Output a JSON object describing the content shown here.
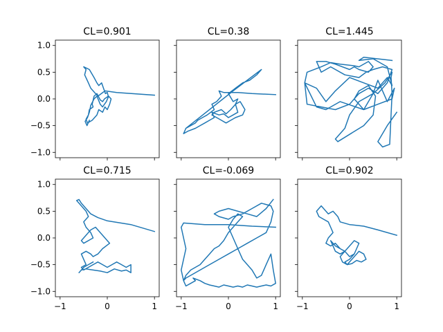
{
  "chart_data": [
    {
      "type": "line",
      "title": "CL=0.901",
      "xlim": [
        -1.1,
        1.1
      ],
      "ylim": [
        -1.1,
        1.1
      ],
      "xticks": [
        -1,
        0,
        1
      ],
      "yticks": [
        -1.0,
        -0.5,
        0.0,
        0.5,
        1.0
      ],
      "xtick_labels": [],
      "ytick_labels": [
        "−1.0",
        "−0.5",
        "0.0",
        "0.5",
        "1.0"
      ],
      "series": [
        {
          "x": [
            1.0,
            0.2,
            -0.05,
            -0.2,
            -0.35,
            -0.4,
            -0.48,
            -0.45,
            -0.5,
            -0.38,
            -0.28,
            -0.22,
            -0.18,
            -0.12,
            -0.08,
            -0.04,
            0.0,
            0.02,
            -0.06,
            -0.1,
            -0.15,
            -0.22,
            -0.28,
            -0.32,
            -0.3,
            -0.38,
            -0.4,
            -0.45,
            -0.42,
            -0.32,
            -0.22,
            -0.18,
            -0.1,
            -0.05,
            0.0,
            0.05,
            0.08,
            0.03,
            -0.02,
            -0.1,
            -0.15,
            -0.22,
            -0.28,
            -0.35,
            -0.38,
            -0.42,
            -0.47,
            -0.43,
            -0.38
          ],
          "y": [
            0.07,
            0.12,
            0.15,
            0.05,
            0.2,
            0.3,
            0.45,
            0.55,
            0.6,
            0.55,
            0.4,
            0.3,
            0.25,
            0.3,
            0.2,
            0.1,
            0.12,
            0.05,
            0.0,
            -0.05,
            -0.02,
            0.1,
            0.05,
            -0.1,
            -0.15,
            -0.2,
            -0.3,
            -0.38,
            -0.45,
            -0.4,
            -0.3,
            -0.2,
            -0.25,
            -0.15,
            -0.2,
            -0.1,
            0.0,
            0.05,
            -0.05,
            -0.15,
            -0.1,
            0.05,
            0.0,
            -0.12,
            -0.25,
            -0.35,
            -0.42,
            -0.5,
            -0.4
          ]
        }
      ]
    },
    {
      "type": "line",
      "title": "CL=0.38",
      "xlim": [
        -1.1,
        1.1
      ],
      "ylim": [
        -1.1,
        1.1
      ],
      "xticks": [
        -1,
        0,
        1
      ],
      "yticks": [
        -1.0,
        -0.5,
        0.0,
        0.5,
        1.0
      ],
      "xtick_labels": [],
      "ytick_labels": [],
      "series": [
        {
          "x": [
            1.0,
            0.5,
            0.2,
            -0.1,
            -0.2,
            -0.15,
            -0.25,
            -0.35,
            -0.3,
            -0.45,
            -0.55,
            -0.65,
            -0.7,
            -0.9,
            -0.95,
            -0.85,
            -0.7,
            -0.6,
            -0.5,
            -0.4,
            -0.3,
            -0.35,
            -0.2,
            -0.1,
            0.0,
            0.1,
            0.2,
            0.15,
            0.25,
            0.35,
            0.3,
            0.15,
            0.05,
            -0.05,
            -0.15,
            -0.25,
            -0.35,
            -0.3,
            -0.15,
            -0.05,
            0.05,
            0.15,
            0.2,
            0.1,
            0.0,
            0.15,
            0.3,
            0.45,
            0.6,
            0.7,
            0.1,
            -0.9
          ],
          "y": [
            0.08,
            0.1,
            0.12,
            0.12,
            0.15,
            0.05,
            -0.05,
            -0.1,
            -0.2,
            -0.3,
            -0.35,
            -0.4,
            -0.45,
            -0.55,
            -0.65,
            -0.6,
            -0.55,
            -0.5,
            -0.45,
            -0.4,
            -0.35,
            -0.25,
            -0.3,
            -0.28,
            -0.35,
            -0.3,
            -0.25,
            -0.1,
            -0.05,
            -0.2,
            -0.3,
            -0.35,
            -0.4,
            -0.45,
            -0.4,
            -0.35,
            -0.3,
            -0.25,
            -0.2,
            -0.28,
            -0.2,
            -0.1,
            0.0,
            -0.05,
            0.1,
            0.2,
            0.3,
            0.35,
            0.45,
            0.55,
            0.15,
            -0.55
          ]
        }
      ]
    },
    {
      "type": "line",
      "title": "CL=1.445",
      "xlim": [
        -1.1,
        1.1
      ],
      "ylim": [
        -1.1,
        1.1
      ],
      "xticks": [
        -1,
        0,
        1
      ],
      "yticks": [
        -1.0,
        -0.5,
        0.0,
        0.5,
        1.0
      ],
      "xtick_labels": [],
      "ytick_labels": [],
      "series": [
        {
          "x": [
            1.0,
            0.8,
            0.6,
            0.7,
            0.85,
            0.9,
            0.88,
            0.9,
            0.75,
            0.5,
            0.2,
            0.0,
            -0.1,
            -0.3,
            -0.25,
            0.3,
            0.5,
            0.55,
            0.4,
            0.2,
            0.1,
            0.3,
            0.5,
            0.6,
            0.7,
            0.8,
            0.95,
            0.9,
            0.6,
            0.3,
            -0.2,
            -0.5,
            -0.7,
            -0.95,
            -0.9,
            -0.6,
            -0.4,
            -0.2,
            0.1,
            0.2,
            0.4,
            0.5,
            0.4,
            0.2,
            0.1,
            0.0,
            -0.3,
            -0.5,
            -0.7,
            -0.6,
            -0.4,
            -0.1,
            0.2,
            0.35,
            0.5,
            0.7,
            0.9,
            0.8,
            0.6,
            0.4,
            0.2,
            0.0,
            -0.3,
            -0.6,
            -0.9,
            -0.95,
            -0.7,
            -0.5,
            -0.3,
            0.0,
            0.3,
            0.6,
            0.8,
            0.9,
            0.8,
            0.5,
            0.2,
            0.3,
            0.9
          ],
          "y": [
            -0.25,
            -0.5,
            -0.8,
            -0.9,
            -0.85,
            0.1,
            0.4,
            0.5,
            0.3,
            0.1,
            -0.05,
            -0.3,
            -0.55,
            -0.75,
            -0.8,
            -0.5,
            -0.3,
            0.05,
            0.25,
            0.15,
            0.0,
            -0.2,
            0.1,
            0.35,
            0.15,
            -0.05,
            0.2,
            0.0,
            -0.1,
            -0.2,
            -0.05,
            -0.2,
            -0.15,
            0.3,
            0.5,
            0.6,
            0.68,
            0.65,
            0.62,
            0.6,
            0.7,
            0.6,
            0.5,
            0.55,
            0.6,
            0.55,
            0.65,
            0.7,
            0.7,
            0.5,
            0.6,
            0.45,
            0.4,
            0.5,
            0.55,
            0.6,
            0.55,
            0.3,
            0.1,
            0.2,
            0.1,
            -0.1,
            -0.2,
            -0.15,
            -0.1,
            0.3,
            0.2,
            -0.05,
            0.15,
            0.4,
            0.3,
            0.2,
            0.4,
            0.25,
            0.6,
            0.75,
            0.72,
            0.78,
            0.72
          ]
        }
      ]
    },
    {
      "type": "line",
      "title": "CL=0.715",
      "xlim": [
        -1.1,
        1.1
      ],
      "ylim": [
        -1.1,
        1.1
      ],
      "xticks": [
        -1,
        0,
        1
      ],
      "yticks": [
        -1.0,
        -0.5,
        0.0,
        0.5,
        1.0
      ],
      "xtick_labels": [
        "−1",
        "0",
        "1"
      ],
      "ytick_labels": [
        "−1.0",
        "−0.5",
        "0.0",
        "0.5",
        "1.0"
      ],
      "series": [
        {
          "x": [
            1.0,
            0.5,
            0.0,
            -0.2,
            -0.35,
            -0.45,
            -0.55,
            -0.6,
            -0.65,
            -0.55,
            -0.45,
            -0.4,
            -0.5,
            -0.45,
            -0.35,
            -0.3,
            -0.4,
            -0.5,
            -0.55,
            -0.45,
            -0.35,
            -0.25,
            -0.15,
            -0.05,
            0.05,
            -0.1,
            -0.2,
            -0.3,
            -0.35,
            -0.45,
            -0.55,
            -0.5,
            -0.45,
            -0.55,
            -0.5,
            -0.4,
            -0.3,
            -0.2,
            -0.1,
            0.0,
            0.1,
            0.2,
            0.3,
            0.4,
            0.5,
            0.5,
            0.4,
            0.3,
            0.15,
            0.0,
            -0.15,
            -0.3,
            -0.45,
            -0.55,
            -0.6,
            -0.5,
            -0.4,
            -0.3
          ],
          "y": [
            0.12,
            0.25,
            0.32,
            0.38,
            0.45,
            0.55,
            0.65,
            0.72,
            0.7,
            0.6,
            0.5,
            0.4,
            0.3,
            0.2,
            0.1,
            0.0,
            -0.05,
            -0.1,
            -0.05,
            0.05,
            0.15,
            0.2,
            0.1,
            0.0,
            -0.1,
            -0.2,
            -0.3,
            -0.35,
            -0.3,
            -0.25,
            -0.3,
            -0.4,
            -0.5,
            -0.55,
            -0.6,
            -0.55,
            -0.5,
            -0.45,
            -0.5,
            -0.55,
            -0.5,
            -0.45,
            -0.5,
            -0.55,
            -0.5,
            -0.65,
            -0.6,
            -0.62,
            -0.58,
            -0.65,
            -0.62,
            -0.6,
            -0.58,
            -0.6,
            -0.65,
            -0.55,
            -0.5,
            -0.45
          ]
        }
      ]
    },
    {
      "type": "line",
      "title": "CL=-0.069",
      "xlim": [
        -1.1,
        1.1
      ],
      "ylim": [
        -1.1,
        1.1
      ],
      "xticks": [
        -1,
        0,
        1
      ],
      "yticks": [
        -1.0,
        -0.5,
        0.0,
        0.5,
        1.0
      ],
      "xtick_labels": [
        "−1",
        "0",
        "1"
      ],
      "ytick_labels": [],
      "series": [
        {
          "x": [
            1.0,
            0.5,
            0.0,
            -0.5,
            -0.95,
            -1.0,
            -0.95,
            -0.9,
            -0.95,
            -1.0,
            -0.95,
            -0.9,
            -0.8,
            -0.7,
            -0.75,
            -0.6,
            -0.5,
            -0.4,
            -0.3,
            -0.2,
            -0.1,
            0.0,
            0.1,
            0.2,
            0.3,
            0.4,
            0.5,
            0.6,
            0.7,
            0.8,
            0.9,
            1.0,
            0.95,
            0.9,
            0.8,
            0.7,
            0.6,
            0.5,
            0.4,
            0.3,
            0.2,
            0.1,
            0.0,
            0.1,
            0.2,
            0.3,
            0.2,
            0.0,
            -0.1,
            -0.2,
            -0.3,
            -0.4,
            -0.5,
            -0.6,
            -0.7,
            -0.8,
            -0.9,
            -0.95,
            -0.9,
            -0.8,
            -0.6,
            -0.4,
            -0.2,
            0.0,
            0.2,
            0.4,
            0.6,
            0.8,
            0.9,
            0.95,
            0.9,
            0.7,
            0.5,
            0.3,
            0.1,
            0.0,
            -0.2,
            -0.3,
            -0.2,
            0.0,
            0.2,
            0.4,
            0.6,
            0.8,
            0.95
          ],
          "y": [
            0.2,
            0.22,
            0.25,
            0.25,
            0.28,
            0.2,
            0.0,
            -0.2,
            -0.4,
            -0.6,
            -0.8,
            -0.9,
            -0.85,
            -0.8,
            -0.75,
            -0.8,
            -0.85,
            -0.88,
            -0.9,
            -0.92,
            -0.88,
            -0.9,
            -0.92,
            -0.9,
            -0.92,
            -0.88,
            -0.9,
            -0.92,
            -0.9,
            -0.88,
            -0.9,
            -0.85,
            -0.6,
            -0.3,
            -0.5,
            -0.7,
            -0.75,
            -0.6,
            -0.5,
            -0.4,
            -0.2,
            0.0,
            0.2,
            0.35,
            0.45,
            0.4,
            0.3,
            0.1,
            -0.05,
            -0.15,
            -0.2,
            -0.3,
            -0.4,
            -0.5,
            -0.55,
            -0.6,
            -0.7,
            -0.8,
            -0.75,
            -0.7,
            -0.6,
            -0.5,
            -0.4,
            -0.3,
            -0.2,
            -0.1,
            0.0,
            0.1,
            0.3,
            0.5,
            0.6,
            0.65,
            0.55,
            0.45,
            0.4,
            0.35,
            0.4,
            0.45,
            0.5,
            0.55,
            0.5,
            0.45,
            0.4,
            0.55,
            0.72
          ]
        }
      ]
    },
    {
      "type": "line",
      "title": "CL=0.902",
      "xlim": [
        -1.1,
        1.1
      ],
      "ylim": [
        -1.1,
        1.1
      ],
      "xticks": [
        -1,
        0,
        1
      ],
      "yticks": [
        -1.0,
        -0.5,
        0.0,
        0.5,
        1.0
      ],
      "xtick_labels": [
        "−1",
        "0",
        "1"
      ],
      "ytick_labels": [],
      "series": [
        {
          "x": [
            1.0,
            0.6,
            0.3,
            0.0,
            -0.2,
            -0.25,
            -0.35,
            -0.45,
            -0.55,
            -0.6,
            -0.65,
            -0.7,
            -0.65,
            -0.55,
            -0.45,
            -0.4,
            -0.35,
            -0.45,
            -0.5,
            -0.4,
            -0.3,
            -0.2,
            -0.1,
            -0.2,
            -0.3,
            -0.35,
            -0.4,
            -0.3,
            -0.2,
            -0.1,
            0.0,
            0.1,
            0.15,
            0.2,
            0.1,
            0.0,
            -0.1,
            -0.2,
            -0.15,
            -0.05,
            0.05,
            0.15,
            0.2,
            0.3,
            0.35,
            0.25,
            0.15,
            0.05,
            -0.05,
            -0.1,
            0.0,
            0.1
          ],
          "y": [
            0.05,
            0.15,
            0.22,
            0.25,
            0.3,
            0.4,
            0.5,
            0.45,
            0.55,
            0.6,
            0.55,
            0.5,
            0.4,
            0.35,
            0.3,
            0.2,
            0.1,
            0.0,
            -0.1,
            -0.15,
            -0.1,
            -0.2,
            -0.25,
            -0.3,
            -0.25,
            -0.15,
            -0.05,
            -0.15,
            -0.2,
            -0.25,
            -0.35,
            -0.3,
            -0.2,
            -0.1,
            -0.05,
            -0.15,
            -0.25,
            -0.35,
            -0.45,
            -0.5,
            -0.4,
            -0.3,
            -0.25,
            -0.3,
            -0.4,
            -0.45,
            -0.42,
            -0.48,
            -0.5,
            -0.45,
            -0.4,
            -0.3
          ]
        }
      ]
    }
  ]
}
